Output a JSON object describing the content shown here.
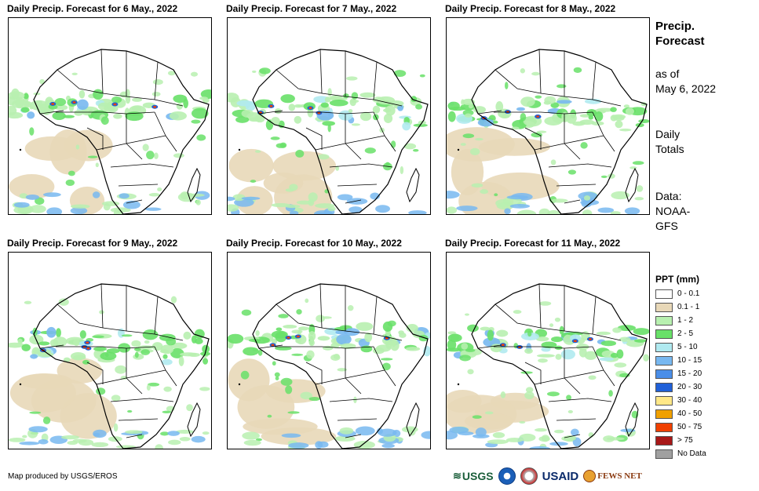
{
  "panels": [
    {
      "title": "Daily Precip. Forecast for 6 May., 2022"
    },
    {
      "title": "Daily Precip. Forecast for 7 May., 2022"
    },
    {
      "title": "Daily Precip. Forecast for 8 May., 2022"
    },
    {
      "title": "Daily Precip. Forecast for 9 May., 2022"
    },
    {
      "title": "Daily Precip. Forecast for 10 May., 2022"
    },
    {
      "title": "Daily Precip. Forecast for 11 May., 2022"
    }
  ],
  "side": {
    "heading_line1": "Precip.",
    "heading_line2": "Forecast",
    "asof_line1": "as of",
    "asof_line2": "May 6, 2022",
    "daily_line1": "Daily",
    "daily_line2": "Totals",
    "data_line1": "Data:",
    "data_line2": "NOAA-",
    "data_line3": "GFS"
  },
  "legend": {
    "title": "PPT (mm)",
    "items": [
      {
        "label": "0 - 0.1",
        "color": "#ffffff"
      },
      {
        "label": "0.1 - 1",
        "color": "#e8d8b8"
      },
      {
        "label": "1 - 2",
        "color": "#b8f0b0"
      },
      {
        "label": "2 - 5",
        "color": "#68e068"
      },
      {
        "label": "5 - 10",
        "color": "#b0eaf0"
      },
      {
        "label": "10 - 15",
        "color": "#78b8f0"
      },
      {
        "label": "15 - 20",
        "color": "#4a8ee8"
      },
      {
        "label": "20 - 30",
        "color": "#2060d8"
      },
      {
        "label": "30 - 40",
        "color": "#ffe888"
      },
      {
        "label": "40 - 50",
        "color": "#f0a000"
      },
      {
        "label": "50 - 75",
        "color": "#f04000"
      },
      {
        "label": "> 75",
        "color": "#a81818"
      },
      {
        "label": "No Data",
        "color": "#a0a0a0"
      }
    ]
  },
  "credit": "Map produced by USGS/EROS",
  "logos": {
    "usgs": "USGS",
    "usaid": "USAID",
    "fewsnet": "FEWS NET"
  }
}
